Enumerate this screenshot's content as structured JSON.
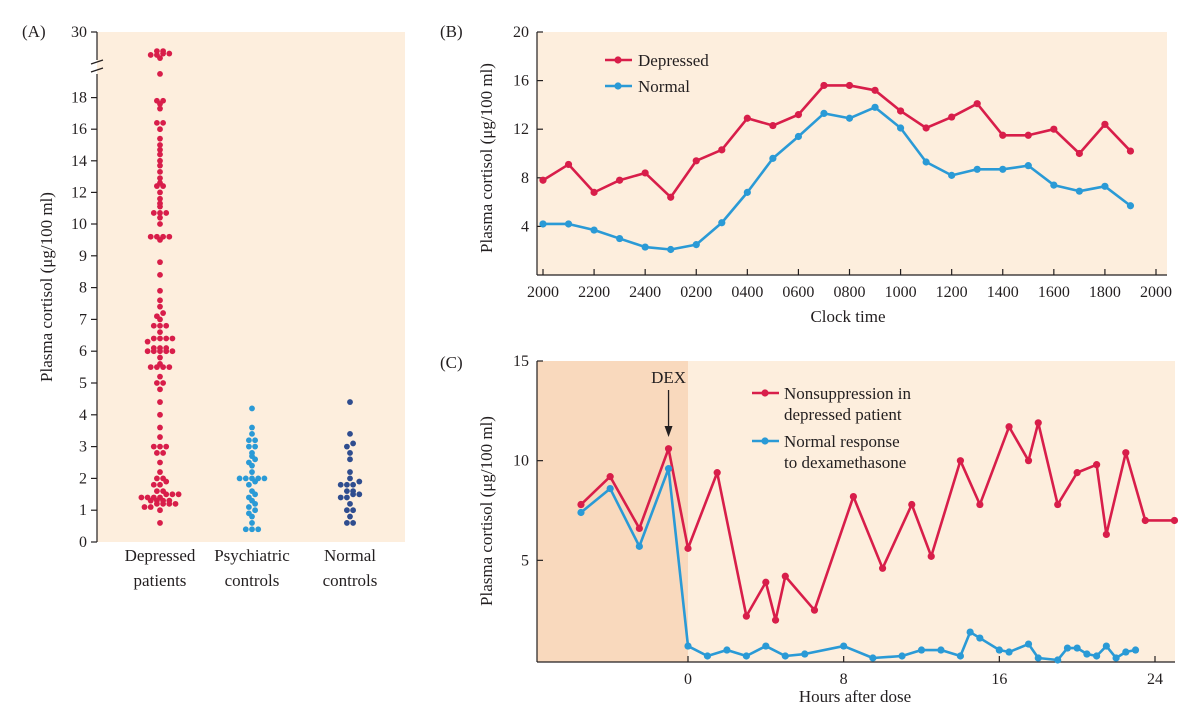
{
  "colors": {
    "plot_bg": "#fdeedd",
    "shaded_bg": "#f9d9bd",
    "depressed": "#d81e4a",
    "normal": "#2a9ad6",
    "psychiatric": "#2a9ad6",
    "normal_controls": "#2f4d8f",
    "axis": "#231f20"
  },
  "chart_data": [
    {
      "panel": "(A)",
      "type": "scatter",
      "ylabel": "Plasma cortisol (μg/100 ml)",
      "ylim": [
        0,
        30
      ],
      "axis_break": [
        19,
        29
      ],
      "y_ticks": [
        "0",
        "1",
        "2",
        "3",
        "4",
        "5",
        "6",
        "7",
        "8",
        "9",
        "10",
        "12",
        "14",
        "16",
        "18",
        "30"
      ],
      "grid": false,
      "groups": [
        {
          "label_line1": "Depressed",
          "label_line2": "patients",
          "color": "depressed",
          "values": [
            0.6,
            1.0,
            1.1,
            1.1,
            1.2,
            1.2,
            1.2,
            1.2,
            1.3,
            1.3,
            1.3,
            1.3,
            1.4,
            1.4,
            1.4,
            1.4,
            1.5,
            1.5,
            1.5,
            1.6,
            1.6,
            1.8,
            1.8,
            1.9,
            2.0,
            2.0,
            2.2,
            2.5,
            2.8,
            2.8,
            3.0,
            3.0,
            3.0,
            3.3,
            3.6,
            4.0,
            4.4,
            4.8,
            5.0,
            5.0,
            5.2,
            5.5,
            5.5,
            5.5,
            5.5,
            5.6,
            5.8,
            6.0,
            6.0,
            6.0,
            6.0,
            6.0,
            6.1,
            6.1,
            6.1,
            6.3,
            6.4,
            6.4,
            6.4,
            6.4,
            6.6,
            6.8,
            6.8,
            6.8,
            7.0,
            7.1,
            7.2,
            7.4,
            7.6,
            7.9,
            8.4,
            8.8,
            9.5,
            9.6,
            9.6,
            9.6,
            9.6,
            10.0,
            10.4,
            10.7,
            10.7,
            10.7,
            11.1,
            11.3,
            11.6,
            12.0,
            12.4,
            12.4,
            12.6,
            12.9,
            13.3,
            13.7,
            14.0,
            14.4,
            14.7,
            15.0,
            15.4,
            16.0,
            16.4,
            16.4,
            17.3,
            17.6,
            17.8,
            17.8,
            19.5,
            25.4,
            26.3,
            26.3,
            26.7,
            26.7,
            27.4,
            27.4
          ],
          "mid_x": 0.0
        },
        {
          "label_line1": "Psychiatric",
          "label_line2": "controls",
          "color": "psychiatric",
          "values": [
            0.4,
            0.4,
            0.4,
            0.6,
            0.8,
            0.9,
            1.0,
            1.1,
            1.2,
            1.3,
            1.4,
            1.5,
            1.6,
            1.8,
            1.9,
            2.0,
            2.0,
            2.0,
            2.0,
            2.0,
            2.2,
            2.4,
            2.5,
            2.6,
            2.7,
            2.8,
            3.0,
            3.0,
            3.2,
            3.2,
            3.4,
            3.6,
            4.2
          ]
        },
        {
          "label_line1": "Normal",
          "label_line2": "controls",
          "color": "normal_controls",
          "values": [
            0.6,
            0.6,
            0.8,
            1.0,
            1.0,
            1.2,
            1.4,
            1.4,
            1.5,
            1.5,
            1.6,
            1.6,
            1.8,
            1.8,
            1.8,
            1.9,
            2.0,
            2.2,
            2.6,
            2.8,
            3.0,
            3.1,
            3.4,
            4.4
          ]
        }
      ]
    },
    {
      "panel": "(B)",
      "type": "line",
      "xlabel": "Clock time",
      "ylabel": "Plasma cortisol (μg/100 ml)",
      "ylim": [
        0,
        20
      ],
      "y_ticks": [
        4,
        8,
        12,
        16,
        20
      ],
      "x_ticks": [
        "2000",
        "2200",
        "2400",
        "0200",
        "0400",
        "0600",
        "0800",
        "1000",
        "1200",
        "1400",
        "1600",
        "1800",
        "2000"
      ],
      "legend_position": "top-left",
      "grid": false,
      "series": [
        {
          "name": "Depressed",
          "color": "depressed",
          "values": [
            7.8,
            9.1,
            6.8,
            7.8,
            8.4,
            6.4,
            9.4,
            10.3,
            12.9,
            12.3,
            13.2,
            15.6,
            15.6,
            15.2,
            13.5,
            12.1,
            13.0,
            14.1,
            11.5,
            11.5,
            12.0,
            10.0,
            12.4,
            10.2
          ]
        },
        {
          "name": "Normal",
          "color": "normal",
          "values": [
            4.2,
            4.2,
            3.7,
            3.0,
            2.3,
            2.1,
            2.5,
            4.3,
            6.8,
            9.6,
            11.4,
            13.3,
            12.9,
            13.8,
            12.1,
            9.3,
            8.2,
            8.7,
            8.7,
            9.0,
            7.4,
            6.9,
            7.3,
            5.7
          ]
        }
      ]
    },
    {
      "panel": "(C)",
      "type": "line",
      "xlabel": "Hours after dose",
      "ylabel": "Plasma cortisol (μg/100 ml)",
      "xlim": [
        -8.5,
        25
      ],
      "ylim": [
        0,
        15
      ],
      "y_ticks": [
        5,
        10,
        15
      ],
      "x_ticks": [
        0,
        8,
        16,
        24
      ],
      "annotation": "DEX",
      "annotation_x": -1,
      "shaded_until_x": 0,
      "legend_position": "top-right",
      "grid": false,
      "series": [
        {
          "name_line1": "Nonsuppression in",
          "name_line2": "depressed patient",
          "color": "depressed",
          "x": [
            -5.5,
            -4,
            -2.5,
            -1,
            0,
            1.5,
            3,
            4,
            4.5,
            5,
            6.5,
            8.5,
            10,
            11.5,
            12.5,
            14,
            15,
            16.5,
            17.5,
            18,
            19,
            20,
            21,
            21.5,
            22.5,
            23.5,
            25
          ],
          "y": [
            7.8,
            9.2,
            6.6,
            10.6,
            5.6,
            9.4,
            2.2,
            3.9,
            2.0,
            4.2,
            2.5,
            8.2,
            4.6,
            7.8,
            5.2,
            10.0,
            7.8,
            11.7,
            10.0,
            11.9,
            7.8,
            9.4,
            9.8,
            6.3,
            10.4,
            7.0,
            7.0
          ]
        },
        {
          "name_line1": "Normal response",
          "name_line2": "to dexamethasone",
          "color": "normal",
          "x": [
            -5.5,
            -4,
            -2.5,
            -1,
            0,
            1,
            2,
            3,
            4,
            5,
            6,
            8,
            9.5,
            11,
            12,
            13,
            14,
            14.5,
            15,
            16,
            16.5,
            17.5,
            18,
            19,
            19.5,
            20,
            20.5,
            21,
            21.5,
            22,
            22.5,
            23
          ],
          "y": [
            7.4,
            8.6,
            5.7,
            9.6,
            0.7,
            0.2,
            0.5,
            0.2,
            0.7,
            0.2,
            0.3,
            0.7,
            0.1,
            0.2,
            0.5,
            0.5,
            0.2,
            1.4,
            1.1,
            0.5,
            0.4,
            0.8,
            0.1,
            0.0,
            0.6,
            0.6,
            0.3,
            0.2,
            0.7,
            0.1,
            0.4,
            0.5
          ]
        }
      ]
    }
  ]
}
